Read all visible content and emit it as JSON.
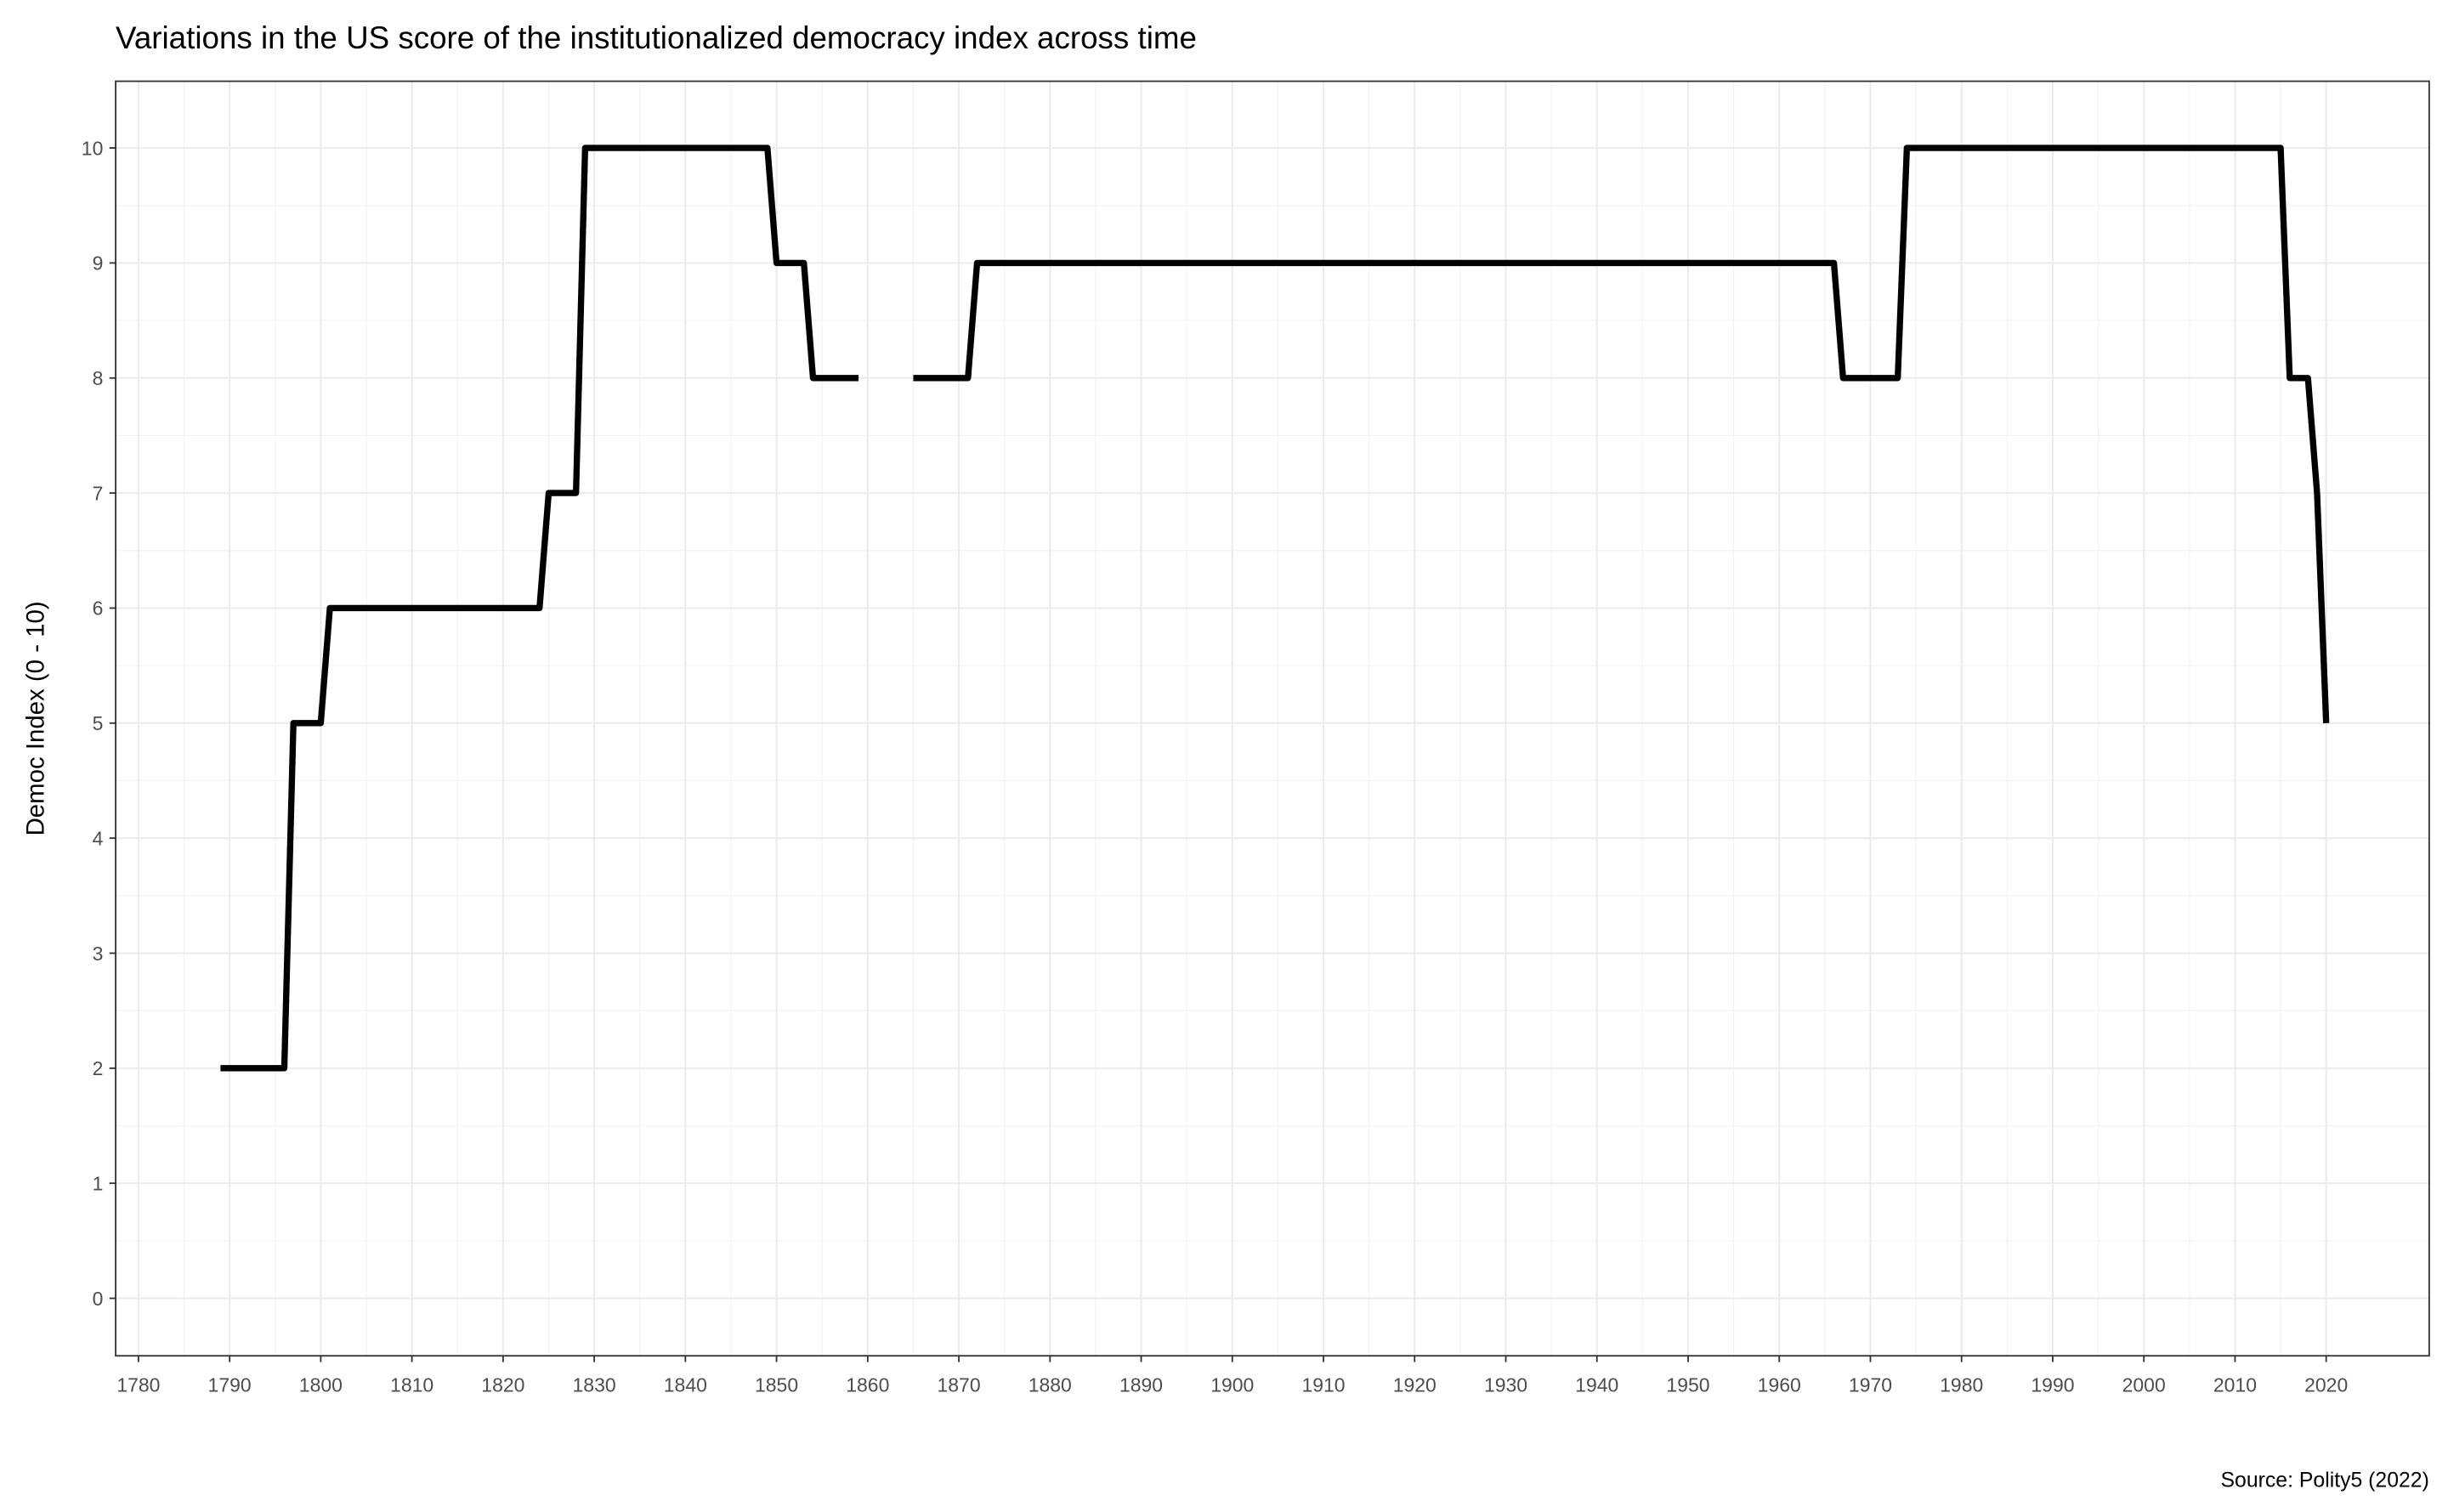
{
  "chart_data": {
    "type": "line",
    "title": "Variations in the US score of the institutionalized democracy index across time",
    "ylabel": "Democ Index (0 - 10)",
    "caption": "Source: Polity5 (2022)",
    "color": "#000000",
    "grid": true,
    "x": [
      1789,
      1790,
      1791,
      1792,
      1793,
      1794,
      1795,
      1796,
      1797,
      1798,
      1799,
      1800,
      1801,
      1802,
      1803,
      1804,
      1805,
      1806,
      1807,
      1808,
      1809,
      1810,
      1811,
      1812,
      1813,
      1814,
      1815,
      1816,
      1817,
      1818,
      1819,
      1820,
      1821,
      1822,
      1823,
      1824,
      1825,
      1826,
      1827,
      1828,
      1829,
      1830,
      1831,
      1832,
      1833,
      1834,
      1835,
      1836,
      1837,
      1838,
      1839,
      1840,
      1841,
      1842,
      1843,
      1844,
      1845,
      1846,
      1847,
      1848,
      1849,
      1850,
      1851,
      1852,
      1853,
      1854,
      1855,
      1856,
      1857,
      1858,
      1859,
      1860,
      1861,
      1862,
      1863,
      1864,
      1865,
      1866,
      1867,
      1868,
      1869,
      1870,
      1871,
      1872,
      1873,
      1874,
      1875,
      1876,
      1877,
      1878,
      1879,
      1880,
      1881,
      1882,
      1883,
      1884,
      1885,
      1886,
      1887,
      1888,
      1889,
      1890,
      1891,
      1892,
      1893,
      1894,
      1895,
      1896,
      1897,
      1898,
      1899,
      1900,
      1901,
      1902,
      1903,
      1904,
      1905,
      1906,
      1907,
      1908,
      1909,
      1910,
      1911,
      1912,
      1913,
      1914,
      1915,
      1916,
      1917,
      1918,
      1919,
      1920,
      1921,
      1922,
      1923,
      1924,
      1925,
      1926,
      1927,
      1928,
      1929,
      1930,
      1931,
      1932,
      1933,
      1934,
      1935,
      1936,
      1937,
      1938,
      1939,
      1940,
      1941,
      1942,
      1943,
      1944,
      1945,
      1946,
      1947,
      1948,
      1949,
      1950,
      1951,
      1952,
      1953,
      1954,
      1955,
      1956,
      1957,
      1958,
      1959,
      1960,
      1961,
      1962,
      1963,
      1964,
      1965,
      1966,
      1967,
      1968,
      1969,
      1970,
      1971,
      1972,
      1973,
      1974,
      1975,
      1976,
      1977,
      1978,
      1979,
      1980,
      1981,
      1982,
      1983,
      1984,
      1985,
      1986,
      1987,
      1988,
      1989,
      1990,
      1991,
      1992,
      1993,
      1994,
      1995,
      1996,
      1997,
      1998,
      1999,
      2000,
      2001,
      2002,
      2003,
      2004,
      2005,
      2006,
      2007,
      2008,
      2009,
      2010,
      2011,
      2012,
      2013,
      2014,
      2015,
      2016,
      2017,
      2018,
      2019,
      2020
    ],
    "values": [
      2,
      2,
      2,
      2,
      2,
      2,
      2,
      2,
      5,
      5,
      5,
      5,
      6,
      6,
      6,
      6,
      6,
      6,
      6,
      6,
      6,
      6,
      6,
      6,
      6,
      6,
      6,
      6,
      6,
      6,
      6,
      6,
      6,
      6,
      6,
      6,
      7,
      7,
      7,
      7,
      10,
      10,
      10,
      10,
      10,
      10,
      10,
      10,
      10,
      10,
      10,
      10,
      10,
      10,
      10,
      10,
      10,
      10,
      10,
      10,
      10,
      9,
      9,
      9,
      9,
      8,
      8,
      8,
      8,
      8,
      8,
      null,
      null,
      null,
      null,
      null,
      8,
      8,
      8,
      8,
      8,
      8,
      8,
      9,
      9,
      9,
      9,
      9,
      9,
      9,
      9,
      9,
      9,
      9,
      9,
      9,
      9,
      9,
      9,
      9,
      9,
      9,
      9,
      9,
      9,
      9,
      9,
      9,
      9,
      9,
      9,
      9,
      9,
      9,
      9,
      9,
      9,
      9,
      9,
      9,
      9,
      9,
      9,
      9,
      9,
      9,
      9,
      9,
      9,
      9,
      9,
      9,
      9,
      9,
      9,
      9,
      9,
      9,
      9,
      9,
      9,
      9,
      9,
      9,
      9,
      9,
      9,
      9,
      9,
      9,
      9,
      9,
      9,
      9,
      9,
      9,
      9,
      9,
      9,
      9,
      9,
      9,
      9,
      9,
      9,
      9,
      9,
      9,
      9,
      9,
      9,
      9,
      9,
      9,
      9,
      9,
      9,
      9,
      8,
      8,
      8,
      8,
      8,
      8,
      8,
      10,
      10,
      10,
      10,
      10,
      10,
      10,
      10,
      10,
      10,
      10,
      10,
      10,
      10,
      10,
      10,
      10,
      10,
      10,
      10,
      10,
      10,
      10,
      10,
      10,
      10,
      10,
      10,
      10,
      10,
      10,
      10,
      10,
      10,
      10,
      10,
      10,
      10,
      10,
      10,
      10,
      10,
      8,
      8,
      8,
      7,
      5
    ],
    "xlim": [
      1777.5,
      2031.3
    ],
    "xticks": [
      1780,
      1790,
      1800,
      1810,
      1820,
      1830,
      1840,
      1850,
      1860,
      1870,
      1880,
      1890,
      1900,
      1910,
      1920,
      1930,
      1940,
      1950,
      1960,
      1970,
      1980,
      1990,
      2000,
      2010,
      2020
    ],
    "ylim": [
      -0.5,
      10.58
    ],
    "yticks": [
      0,
      1,
      2,
      3,
      4,
      5,
      6,
      7,
      8,
      9,
      10
    ]
  }
}
